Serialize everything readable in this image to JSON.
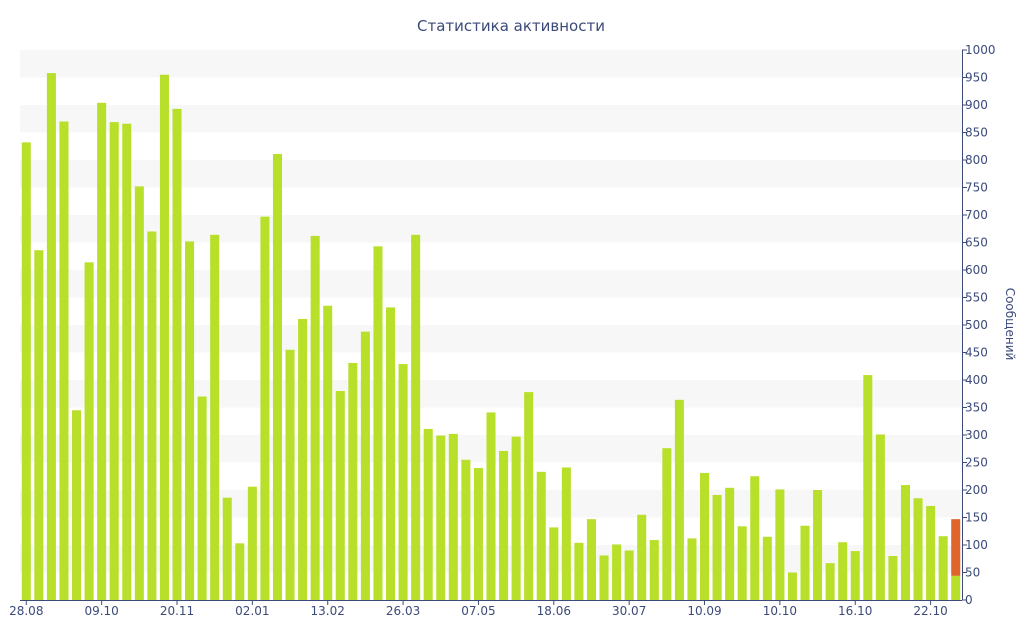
{
  "chart_data": {
    "type": "bar",
    "title": "Статистика активности",
    "xlabel": "",
    "ylabel": "Сообщений",
    "ylim": [
      0,
      1000
    ],
    "ytick_step": 50,
    "y_axis_position": "right",
    "grid": "horizontal alternating bands",
    "x_tick_labels": [
      "28.08",
      "09.10",
      "20.11",
      "02.01",
      "13.02",
      "26.03",
      "07.05",
      "18.06",
      "30.07",
      "10.09",
      "10.10",
      "16.10",
      "22.10"
    ],
    "x_tick_bar_index": [
      0,
      6,
      12,
      18,
      24,
      30,
      36,
      42,
      48,
      54,
      60,
      66,
      72
    ],
    "series": [
      {
        "color": "#b8e02a",
        "values": [
          832,
          636,
          958,
          870,
          345,
          614,
          904,
          869,
          866,
          752,
          670,
          955,
          893,
          652,
          370,
          664,
          186,
          103,
          206,
          697,
          811,
          455,
          511,
          662,
          535,
          380,
          431,
          488,
          643,
          532,
          429,
          664,
          311,
          299,
          302,
          255,
          240,
          341,
          271,
          297,
          378,
          233,
          132,
          241,
          104,
          147,
          81,
          101,
          90,
          155,
          109,
          276,
          364,
          112,
          231,
          191,
          204,
          134,
          225,
          115,
          201,
          50,
          135,
          200,
          67,
          105,
          89,
          409,
          301,
          80,
          209,
          185,
          171,
          116,
          44
        ]
      },
      {
        "color": "#e0652a",
        "values": [
          0,
          0,
          0,
          0,
          0,
          0,
          0,
          0,
          0,
          0,
          0,
          0,
          0,
          0,
          0,
          0,
          0,
          0,
          0,
          0,
          0,
          0,
          0,
          0,
          0,
          0,
          0,
          0,
          0,
          0,
          0,
          0,
          0,
          0,
          0,
          0,
          0,
          0,
          0,
          0,
          0,
          0,
          0,
          0,
          0,
          0,
          0,
          0,
          0,
          0,
          0,
          0,
          0,
          0,
          0,
          0,
          0,
          0,
          0,
          0,
          0,
          0,
          0,
          0,
          0,
          0,
          0,
          0,
          0,
          0,
          0,
          0,
          0,
          0,
          103
        ]
      }
    ]
  }
}
